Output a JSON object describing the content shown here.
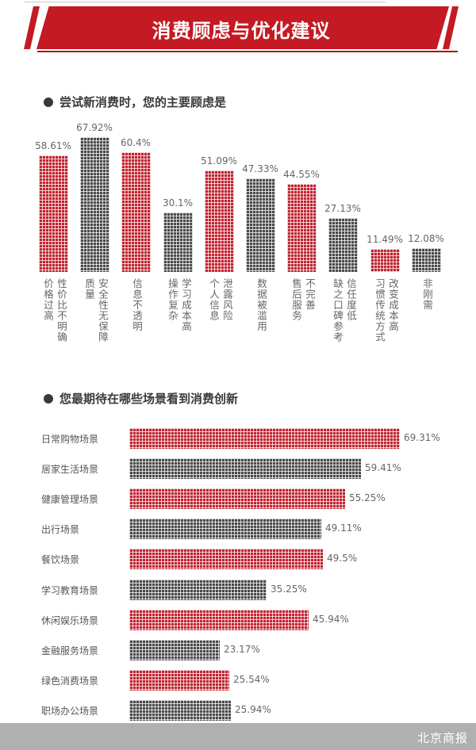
{
  "header": {
    "title": "消费顾虑与优化建议"
  },
  "colors": {
    "accent_red": "#c31a23",
    "bar_red": "#c12330",
    "bar_gray": "#4a4a4a",
    "footer_gray": "#b0b0b0"
  },
  "section1": {
    "title": "尝试新消费时，您的主要顾虑是"
  },
  "section2": {
    "title": "您最期待在哪些场景看到消费创新"
  },
  "footer": {
    "brand": "北京商报"
  },
  "chart_data": [
    {
      "type": "bar",
      "orientation": "vertical",
      "title": "尝试新消费时，您的主要顾虑是",
      "categories": [
        "性价比不明确、价格过高",
        "安全性无保障、质量",
        "信息不透明",
        "学习成本高、操作复杂",
        "泄露风险、个人信息",
        "数据被滥用",
        "不完善、售后服务",
        "信任度低、缺乏口碑参考",
        "改变成本高、习惯传统方式",
        "非刚需"
      ],
      "label_columns": [
        [
          "价格过高",
          "性价比不明确"
        ],
        [
          "质量",
          "安全性无保障"
        ],
        [
          "信息不透明"
        ],
        [
          "操作复杂",
          "学习成本高"
        ],
        [
          "个人信息",
          "泄露风险"
        ],
        [
          "数据被滥用"
        ],
        [
          "售后服务",
          "不完善"
        ],
        [
          "缺之口碑参考",
          "信任度低"
        ],
        [
          "习惯传统方式",
          "改变成本高"
        ],
        [
          "非刚需"
        ]
      ],
      "values": [
        58.61,
        67.92,
        60.4,
        30.1,
        51.09,
        47.33,
        44.55,
        27.13,
        11.49,
        12.08
      ],
      "value_labels": [
        "58.61%",
        "67.92%",
        "60.4%",
        "30.1%",
        "51.09%",
        "47.33%",
        "44.55%",
        "27.13%",
        "11.49%",
        "12.08%"
      ],
      "bar_colors": [
        "red",
        "gray",
        "red",
        "gray",
        "red",
        "gray",
        "red",
        "gray",
        "red",
        "gray"
      ],
      "unit": "%",
      "grid": false,
      "legend": null
    },
    {
      "type": "bar",
      "orientation": "horizontal",
      "title": "您最期待在哪些场景看到消费创新",
      "categories": [
        "日常购物场景",
        "居家生活场景",
        "健康管理场景",
        "出行场景",
        "餐饮场景",
        "学习教育场景",
        "休闲娱乐场景",
        "金融服务场景",
        "绿色消费场景",
        "职场办公场景"
      ],
      "values": [
        69.31,
        59.41,
        55.25,
        49.11,
        49.5,
        35.25,
        45.94,
        23.17,
        25.54,
        25.94
      ],
      "value_labels": [
        "69.31%",
        "59.41%",
        "55.25%",
        "49.11%",
        "49.5%",
        "35.25%",
        "45.94%",
        "23.17%",
        "25.54%",
        "25.94%"
      ],
      "bar_colors": [
        "red",
        "gray",
        "red",
        "gray",
        "red",
        "gray",
        "red",
        "gray",
        "red",
        "gray"
      ],
      "unit": "%",
      "grid": false,
      "legend": null
    }
  ]
}
